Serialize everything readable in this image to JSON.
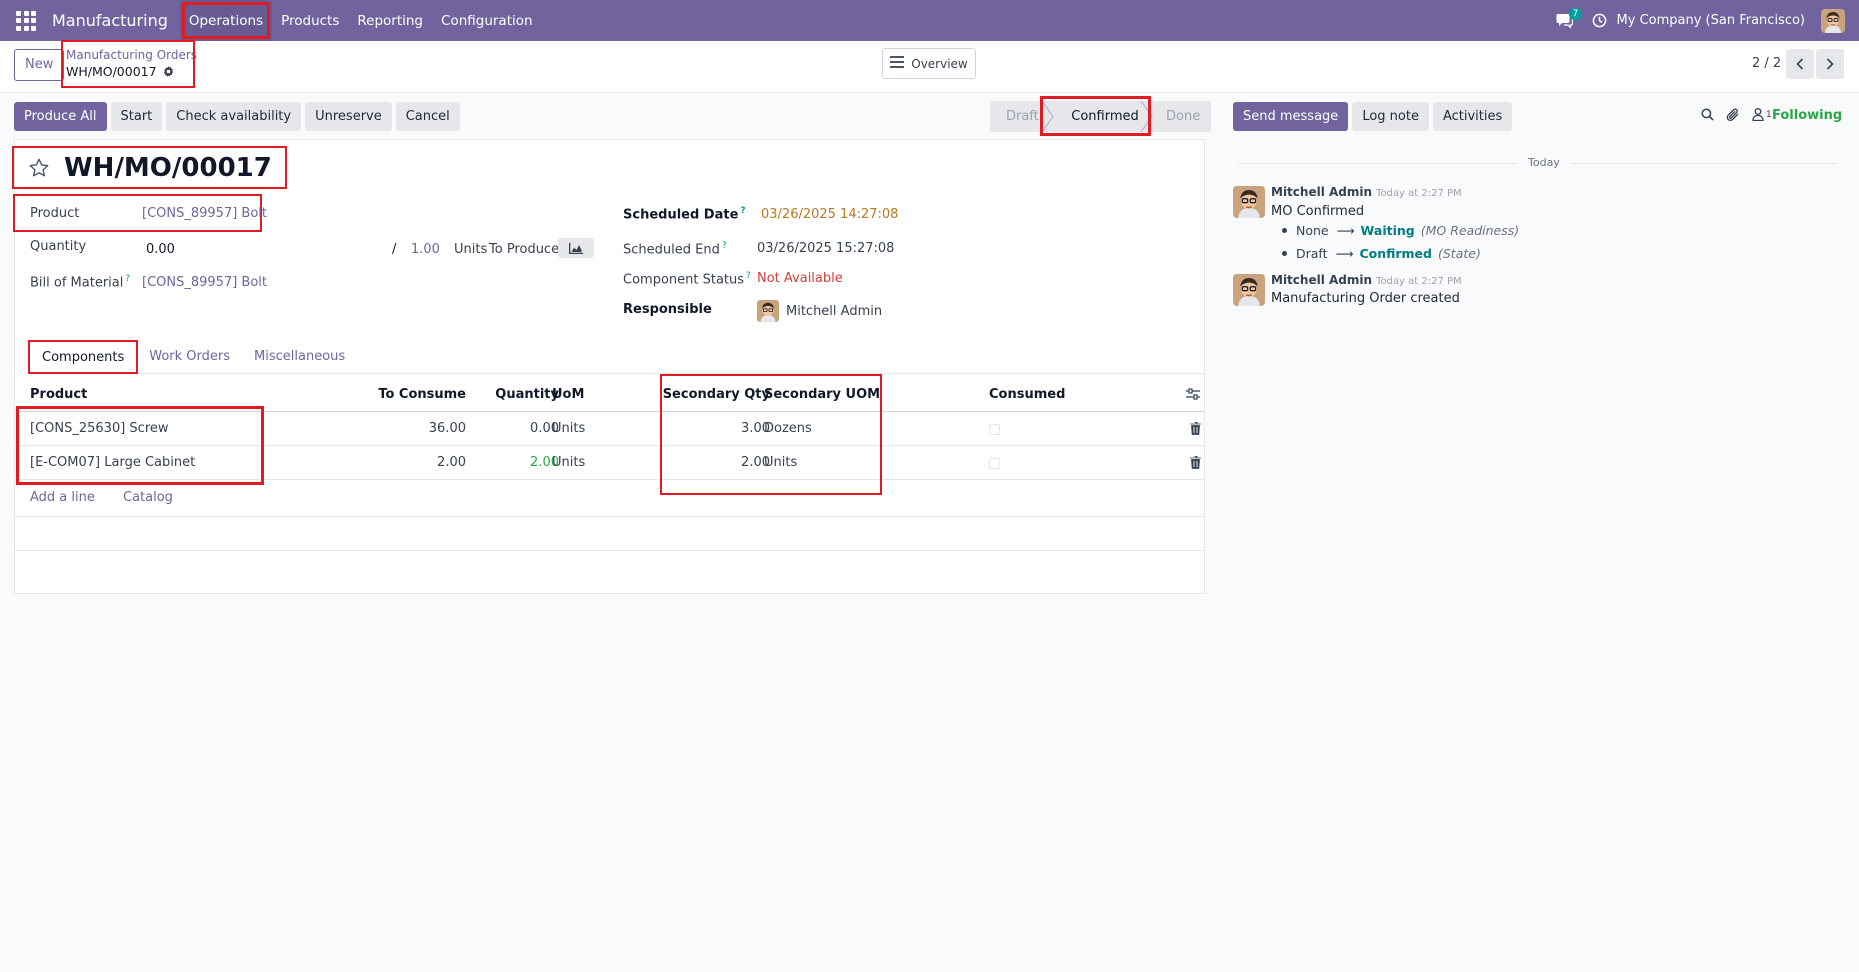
{
  "navbar": {
    "brand": "Manufacturing",
    "menu": [
      "Operations",
      "Products",
      "Reporting",
      "Configuration"
    ],
    "chat_count": "7",
    "company": "My Company (San Francisco)"
  },
  "control_panel": {
    "new_label": "New",
    "breadcrumb_parent": "Manufacturing Orders",
    "breadcrumb_current": "WH/MO/00017",
    "overview_label": "Overview",
    "pager": "2 / 2"
  },
  "actions": [
    "Produce All",
    "Start",
    "Check availability",
    "Unreserve",
    "Cancel"
  ],
  "statusbar": {
    "draft": "Draft",
    "confirmed": "Confirmed",
    "done": "Done"
  },
  "form": {
    "title": "WH/MO/00017",
    "product_label": "Product",
    "product_value": "[CONS_89957] Bolt",
    "quantity_label": "Quantity",
    "quantity_value": "0.00",
    "quantity_sep": "/",
    "quantity_target": "1.00",
    "quantity_uom": "Units",
    "to_produce": "To Produce",
    "bom_label": "Bill of Material",
    "bom_sup": "?",
    "bom_value": "[CONS_89957] Bolt",
    "scheduled_date_label": "Scheduled Date",
    "scheduled_date_sup": "?",
    "scheduled_date_value": "03/26/2025 14:27:08",
    "scheduled_end_label": "Scheduled End",
    "scheduled_end_sup": "?",
    "scheduled_end_value": "03/26/2025 15:27:08",
    "component_status_label": "Component Status",
    "component_status_sup": "?",
    "component_status_value": "Not Available",
    "responsible_label": "Responsible",
    "responsible_value": "Mitchell Admin"
  },
  "tabs": [
    "Components",
    "Work Orders",
    "Miscellaneous"
  ],
  "table": {
    "headers": {
      "product": "Product",
      "to_consume": "To Consume",
      "quantity": "Quantity",
      "uom": "UoM",
      "secondary_qty": "Secondary Qty",
      "secondary_uom": "Secondary UOM",
      "consumed": "Consumed"
    },
    "rows": [
      {
        "product": "[CONS_25630] Screw",
        "to_consume": "36.00",
        "quantity": "0.00",
        "uom": "Units",
        "secondary_qty": "3.00",
        "secondary_uom": "Dozens"
      },
      {
        "product": "[E-COM07] Large Cabinet",
        "to_consume": "2.00",
        "quantity": "2.00",
        "uom": "Units",
        "secondary_qty": "2.00",
        "secondary_uom": "Units"
      }
    ],
    "add_line": "Add a line",
    "catalog": "Catalog"
  },
  "chatter": {
    "send_message": "Send message",
    "log_note": "Log note",
    "activities": "Activities",
    "followers_count": "1",
    "following": "Following",
    "today": "Today",
    "messages": [
      {
        "author": "Mitchell Admin",
        "time": "Today at 2:27 PM",
        "text": "MO Confirmed",
        "tracking": [
          {
            "old": "None",
            "new": "Waiting",
            "field": "(MO Readiness)"
          },
          {
            "old": "Draft",
            "new": "Confirmed",
            "field": "(State)"
          }
        ]
      },
      {
        "author": "Mitchell Admin",
        "time": "Today at 2:27 PM",
        "text": "Manufacturing Order created"
      }
    ]
  },
  "colors": {
    "brand": "#71639e",
    "highlight": "#e11b22",
    "success": "#28a745",
    "danger": "#d23f3a",
    "warning": "#b7791f"
  },
  "icons": [
    "apps-grid-icon",
    "chat-icon",
    "clock-icon",
    "gear-icon",
    "bars-icon",
    "chevron-left-icon",
    "chevron-right-icon",
    "star-icon",
    "chart-icon",
    "trash-icon",
    "options-toggle-icon",
    "search-icon",
    "paperclip-icon",
    "user-icon"
  ]
}
